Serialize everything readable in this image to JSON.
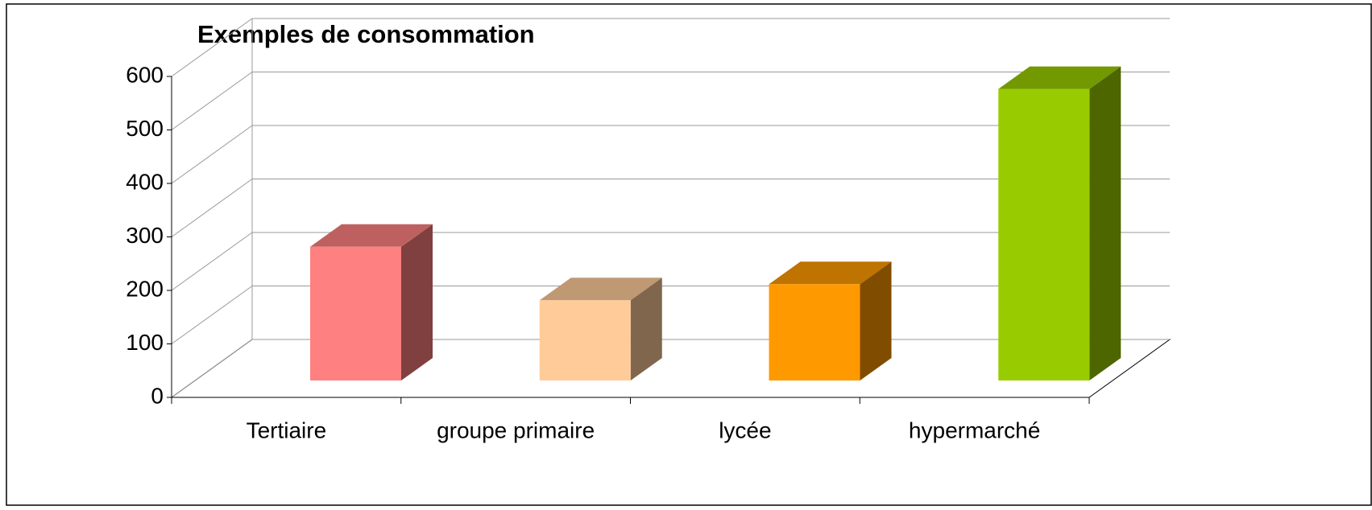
{
  "chart_data": {
    "type": "bar3d",
    "title": "Exemples de consommation",
    "categories": [
      "Tertiaire",
      "groupe primaire",
      "lycée",
      "hypermarché"
    ],
    "values": [
      250,
      150,
      180,
      545
    ],
    "colors": [
      "#ff8080",
      "#ffcc99",
      "#ff9900",
      "#99cc00"
    ],
    "ylim": [
      0,
      600
    ],
    "yticks": [
      0,
      100,
      200,
      300,
      400,
      500,
      600
    ],
    "grid": true
  }
}
